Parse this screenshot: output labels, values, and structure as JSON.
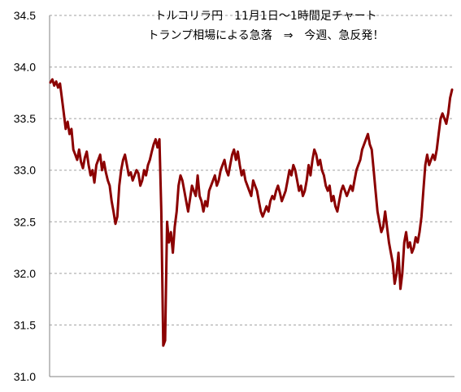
{
  "chart_data": {
    "type": "line",
    "title": "トルコリラ円　11月1日～1時間足チャート",
    "subtitle": "トランプ相場による急落　⇒　今週、急反発！",
    "xlabel": "",
    "ylabel": "",
    "ylim": [
      31.0,
      34.5
    ],
    "yticks": [
      "31.0",
      "31.5",
      "32.0",
      "32.5",
      "33.0",
      "33.5",
      "34.0",
      "34.5"
    ],
    "grid": "horizontal-dashed",
    "legend": "none",
    "colors": {
      "line": "#8b0000",
      "grid": "#a0a0a0",
      "axis": "#808080"
    },
    "series": [
      {
        "values": [
          33.85,
          33.88,
          33.82,
          33.86,
          33.8,
          33.84,
          33.7,
          33.55,
          33.4,
          33.47,
          33.35,
          33.4,
          33.2,
          33.15,
          33.1,
          33.2,
          33.08,
          33.02,
          33.12,
          33.18,
          33.05,
          32.95,
          33.0,
          32.88,
          33.05,
          33.1,
          33.15,
          33.0,
          33.08,
          32.98,
          32.9,
          32.85,
          32.7,
          32.6,
          32.48,
          32.55,
          32.85,
          33.0,
          33.1,
          33.15,
          33.05,
          32.95,
          32.98,
          32.9,
          32.95,
          33.0,
          32.97,
          32.85,
          32.9,
          33.0,
          32.95,
          33.05,
          33.1,
          33.18,
          33.25,
          33.3,
          33.22,
          33.3,
          32.6,
          31.3,
          31.35,
          32.5,
          32.3,
          32.4,
          32.2,
          32.45,
          32.6,
          32.85,
          32.95,
          32.9,
          32.8,
          32.7,
          32.6,
          32.72,
          32.85,
          32.8,
          32.75,
          32.95,
          32.75,
          32.7,
          32.6,
          32.7,
          32.65,
          32.8,
          32.85,
          32.9,
          32.95,
          32.85,
          32.9,
          33.0,
          33.05,
          33.1,
          33.0,
          32.95,
          33.05,
          33.15,
          33.2,
          33.1,
          33.18,
          33.05,
          32.95,
          33.0,
          32.9,
          32.85,
          32.8,
          32.75,
          32.9,
          32.85,
          32.8,
          32.7,
          32.6,
          32.55,
          32.6,
          32.65,
          32.6,
          32.7,
          32.75,
          32.72,
          32.8,
          32.85,
          32.78,
          32.7,
          32.75,
          32.8,
          32.9,
          33.0,
          32.95,
          33.05,
          33.0,
          32.9,
          32.8,
          32.85,
          32.75,
          32.8,
          32.9,
          33.05,
          32.95,
          33.1,
          33.2,
          33.15,
          33.05,
          33.1,
          33.0,
          32.95,
          32.85,
          32.8,
          32.85,
          32.7,
          32.75,
          32.65,
          32.6,
          32.7,
          32.8,
          32.85,
          32.8,
          32.75,
          32.8,
          32.85,
          32.8,
          32.9,
          33.0,
          33.05,
          33.1,
          33.2,
          33.25,
          33.3,
          33.35,
          33.25,
          33.2,
          33.0,
          32.8,
          32.6,
          32.5,
          32.4,
          32.45,
          32.6,
          32.45,
          32.3,
          32.2,
          32.1,
          31.9,
          32.0,
          32.2,
          31.85,
          32.0,
          32.3,
          32.4,
          32.25,
          32.3,
          32.2,
          32.25,
          32.35,
          32.3,
          32.4,
          32.55,
          32.8,
          33.05,
          33.15,
          33.05,
          33.1,
          33.15,
          33.1,
          33.2,
          33.35,
          33.5,
          33.55,
          33.5,
          33.45,
          33.55,
          33.7,
          33.78
        ]
      }
    ]
  }
}
